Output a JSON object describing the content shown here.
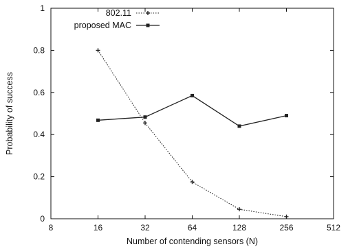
{
  "chart_data": {
    "type": "line",
    "title": "",
    "xlabel": "Number of contending sensors (N)",
    "ylabel": "Probability of success",
    "x_scale": "log2",
    "xlim": [
      8,
      512
    ],
    "ylim": [
      0,
      1
    ],
    "x_ticks": [
      8,
      16,
      32,
      64,
      128,
      256,
      512
    ],
    "x_tick_labels": [
      "8",
      "16",
      "32",
      "64",
      "128",
      "256",
      "512"
    ],
    "y_ticks": [
      0,
      0.2,
      0.4,
      0.6,
      0.8,
      1
    ],
    "y_tick_labels": [
      "0",
      "0.2",
      "0.4",
      "0.6",
      "0.8",
      "1"
    ],
    "grid": false,
    "legend_position": "top-left",
    "series": [
      {
        "name": "802.11",
        "style": "dotted",
        "marker": "plus",
        "color": "#222222",
        "x": [
          16,
          32,
          64,
          128,
          256
        ],
        "values": [
          0.8,
          0.455,
          0.175,
          0.045,
          0.01
        ]
      },
      {
        "name": "proposed MAC",
        "style": "solid",
        "marker": "square",
        "color": "#222222",
        "x": [
          16,
          32,
          64,
          128,
          256
        ],
        "values": [
          0.468,
          0.483,
          0.585,
          0.44,
          0.49
        ]
      }
    ]
  }
}
